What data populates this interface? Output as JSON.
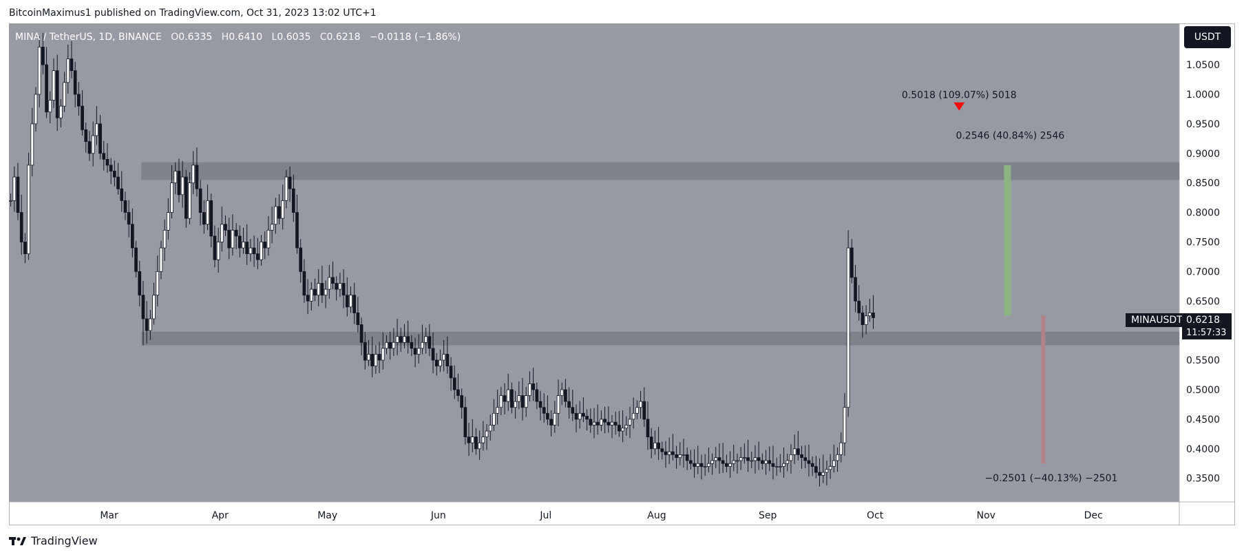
{
  "header": {
    "publisher": "BitcoinMaximus1 published on TradingView.com, Oct 31, 2023 13:02 UTC+1"
  },
  "legend": {
    "symbol": "MINA / TetherUS, 1D, BINANCE",
    "o_label": "O",
    "o_value": "0.6335",
    "h_label": "H",
    "h_value": "0.6410",
    "l_label": "L",
    "l_value": "0.6035",
    "c_label": "C",
    "c_value": "0.6218",
    "change": "−0.0118 (−1.86%)"
  },
  "currency_button": {
    "label": "USDT"
  },
  "price_label": {
    "ticker": "MINAUSDT",
    "price": "0.6218",
    "countdown": "11:57:33"
  },
  "footer": {
    "brand": "TradingView"
  },
  "colors": {
    "background": "#ffffff",
    "plot_bg": "#989aa3",
    "zone": "#80828a",
    "candle_up": "#ffffff",
    "candle_down": "#131722",
    "marker": "#f20d0d",
    "gain_bar": "#8cb483",
    "loss_bar": "#b38288",
    "label_bg": "#131722"
  },
  "chart_data": {
    "type": "candlestick",
    "title": "MINA / TetherUS, 1D, BINANCE",
    "y_axis": {
      "min": 0.31,
      "max": 1.12,
      "position": "right",
      "ticks": [
        1.05,
        1.0,
        0.95,
        0.9,
        0.85,
        0.8,
        0.75,
        0.7,
        0.65,
        0.6,
        0.55,
        0.5,
        0.45,
        0.4,
        0.35
      ],
      "tick_labels": [
        "1.0500",
        "1.0000",
        "0.9500",
        "0.9000",
        "0.8500",
        "0.8000",
        "0.7500",
        "0.7000",
        "0.6500",
        "0.6000",
        "0.5500",
        "0.5000",
        "0.4500",
        "0.4000",
        "0.3500"
      ]
    },
    "x_axis": {
      "start": "2023-02-01",
      "end": "2023-12-25",
      "ticks": [
        {
          "label": "Mar",
          "date": "2023-03-01"
        },
        {
          "label": "Apr",
          "date": "2023-04-01"
        },
        {
          "label": "May",
          "date": "2023-05-01"
        },
        {
          "label": "Jun",
          "date": "2023-06-01"
        },
        {
          "label": "Jul",
          "date": "2023-07-01"
        },
        {
          "label": "Aug",
          "date": "2023-08-01"
        },
        {
          "label": "Sep",
          "date": "2023-09-01"
        },
        {
          "label": "Oct",
          "date": "2023-10-01"
        },
        {
          "label": "Nov",
          "date": "2023-11-01"
        },
        {
          "label": "Dec",
          "date": "2023-12-01"
        }
      ]
    },
    "grid": false,
    "candles_start": "2023-02-01",
    "close_series": [
      0.82,
      0.86,
      0.8,
      0.75,
      0.73,
      0.88,
      0.95,
      1.0,
      1.08,
      1.05,
      0.97,
      0.99,
      1.04,
      0.96,
      0.98,
      1.02,
      1.06,
      1.04,
      1.0,
      0.98,
      0.94,
      0.92,
      0.9,
      0.93,
      0.95,
      0.9,
      0.89,
      0.88,
      0.87,
      0.86,
      0.84,
      0.82,
      0.8,
      0.78,
      0.74,
      0.7,
      0.66,
      0.62,
      0.6,
      0.62,
      0.66,
      0.7,
      0.74,
      0.77,
      0.8,
      0.85,
      0.87,
      0.83,
      0.86,
      0.79,
      0.85,
      0.88,
      0.84,
      0.8,
      0.78,
      0.82,
      0.76,
      0.72,
      0.75,
      0.78,
      0.77,
      0.74,
      0.77,
      0.76,
      0.74,
      0.75,
      0.73,
      0.74,
      0.73,
      0.72,
      0.75,
      0.74,
      0.77,
      0.78,
      0.81,
      0.79,
      0.82,
      0.86,
      0.84,
      0.8,
      0.74,
      0.7,
      0.66,
      0.65,
      0.67,
      0.66,
      0.68,
      0.66,
      0.67,
      0.69,
      0.68,
      0.67,
      0.68,
      0.66,
      0.64,
      0.66,
      0.63,
      0.61,
      0.58,
      0.55,
      0.56,
      0.54,
      0.56,
      0.55,
      0.57,
      0.58,
      0.57,
      0.58,
      0.59,
      0.58,
      0.59,
      0.58,
      0.57,
      0.56,
      0.57,
      0.58,
      0.59,
      0.57,
      0.55,
      0.54,
      0.55,
      0.56,
      0.54,
      0.52,
      0.5,
      0.49,
      0.47,
      0.42,
      0.41,
      0.42,
      0.4,
      0.41,
      0.42,
      0.43,
      0.44,
      0.46,
      0.47,
      0.49,
      0.48,
      0.5,
      0.47,
      0.48,
      0.49,
      0.47,
      0.49,
      0.51,
      0.5,
      0.48,
      0.47,
      0.46,
      0.45,
      0.44,
      0.46,
      0.49,
      0.5,
      0.48,
      0.47,
      0.46,
      0.45,
      0.46,
      0.455,
      0.45,
      0.44,
      0.445,
      0.44,
      0.45,
      0.445,
      0.44,
      0.445,
      0.44,
      0.43,
      0.435,
      0.44,
      0.45,
      0.46,
      0.47,
      0.48,
      0.45,
      0.42,
      0.4,
      0.41,
      0.4,
      0.395,
      0.39,
      0.395,
      0.39,
      0.385,
      0.39,
      0.39,
      0.38,
      0.375,
      0.37,
      0.375,
      0.37,
      0.37,
      0.375,
      0.38,
      0.385,
      0.38,
      0.375,
      0.37,
      0.375,
      0.38,
      0.38,
      0.385,
      0.385,
      0.38,
      0.38,
      0.385,
      0.38,
      0.375,
      0.38,
      0.375,
      0.37,
      0.37,
      0.37,
      0.375,
      0.38,
      0.39,
      0.4,
      0.39,
      0.385,
      0.38,
      0.375,
      0.37,
      0.36,
      0.355,
      0.36,
      0.365,
      0.37,
      0.38,
      0.39,
      0.41,
      0.47,
      0.74,
      0.69,
      0.65,
      0.63,
      0.61,
      0.625,
      0.63,
      0.6218
    ],
    "support_zones": [
      {
        "low": 0.855,
        "high": 0.885,
        "start": "2023-03-10"
      },
      {
        "low": 0.575,
        "high": 0.598,
        "start": "2023-03-10"
      }
    ],
    "annotations": [
      {
        "text": "0.5018 (109.07%) 5018",
        "date": "2023-10-24",
        "price": 0.97
      },
      {
        "text": "0.2546 (40.84%) 2546",
        "date": "2023-11-07",
        "from": 0.625,
        "to": 0.88
      },
      {
        "text": "−0.2501 (−40.13%) −2501",
        "date": "2023-11-17",
        "from": 0.625,
        "to": 0.375
      }
    ],
    "current_price": 0.6218
  }
}
